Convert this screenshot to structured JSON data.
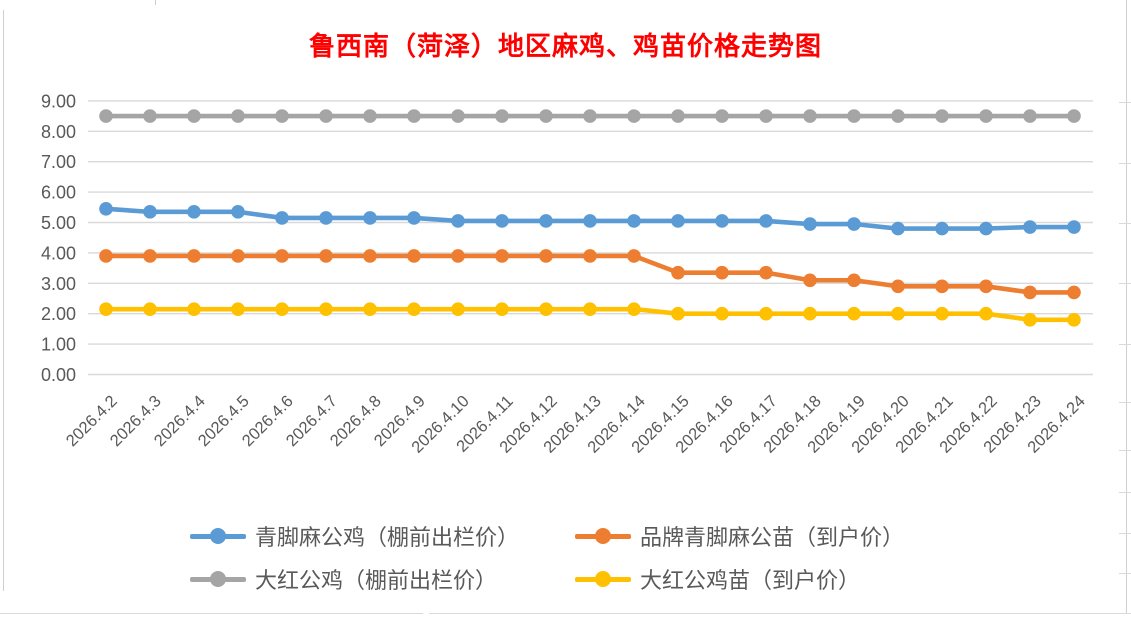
{
  "chart_data": {
    "type": "line",
    "title": "鲁西南（菏泽）地区麻鸡、鸡苗价格走势图",
    "title_color": "#FF0000",
    "categories": [
      "2026.4.2",
      "2026.4.3",
      "2026.4.4",
      "2026.4.5",
      "2026.4.6",
      "2026.4.7",
      "2026.4.8",
      "2026.4.9",
      "2026.4.10",
      "2026.4.11",
      "2026.4.12",
      "2026.4.13",
      "2026.4.14",
      "2026.4.15",
      "2026.4.16",
      "2026.4.17",
      "2026.4.18",
      "2026.4.19",
      "2026.4.20",
      "2026.4.21",
      "2026.4.22",
      "2026.4.23",
      "2026.4.24"
    ],
    "series": [
      {
        "name": "青脚麻公鸡（棚前出栏价）",
        "color": "#5B9BD5",
        "values": [
          5.45,
          5.35,
          5.35,
          5.35,
          5.15,
          5.15,
          5.15,
          5.15,
          5.05,
          5.05,
          5.05,
          5.05,
          5.05,
          5.05,
          5.05,
          5.05,
          4.95,
          4.95,
          4.8,
          4.8,
          4.8,
          4.85,
          4.85
        ]
      },
      {
        "name": "品牌青脚麻公苗（到户价）",
        "color": "#ED7D31",
        "values": [
          3.9,
          3.9,
          3.9,
          3.9,
          3.9,
          3.9,
          3.9,
          3.9,
          3.9,
          3.9,
          3.9,
          3.9,
          3.9,
          3.35,
          3.35,
          3.35,
          3.1,
          3.1,
          2.9,
          2.9,
          2.9,
          2.7,
          2.7
        ]
      },
      {
        "name": "大红公鸡（棚前出栏价）",
        "color": "#A5A5A5",
        "values": [
          8.5,
          8.5,
          8.5,
          8.5,
          8.5,
          8.5,
          8.5,
          8.5,
          8.5,
          8.5,
          8.5,
          8.5,
          8.5,
          8.5,
          8.5,
          8.5,
          8.5,
          8.5,
          8.5,
          8.5,
          8.5,
          8.5,
          8.5
        ]
      },
      {
        "name": "大红公鸡苗（到户价）",
        "color": "#FFC000",
        "values": [
          2.15,
          2.15,
          2.15,
          2.15,
          2.15,
          2.15,
          2.15,
          2.15,
          2.15,
          2.15,
          2.15,
          2.15,
          2.15,
          2.0,
          2.0,
          2.0,
          2.0,
          2.0,
          2.0,
          2.0,
          2.0,
          1.8,
          1.8
        ]
      }
    ],
    "ylim": [
      0,
      9
    ],
    "y_tick_labels": [
      "0.00",
      "1.00",
      "2.00",
      "3.00",
      "4.00",
      "5.00",
      "6.00",
      "7.00",
      "8.00",
      "9.00"
    ],
    "grid": true,
    "legend_position": "bottom",
    "axis_text_color": "#595959",
    "gridline_color": "#D9D9D9"
  }
}
